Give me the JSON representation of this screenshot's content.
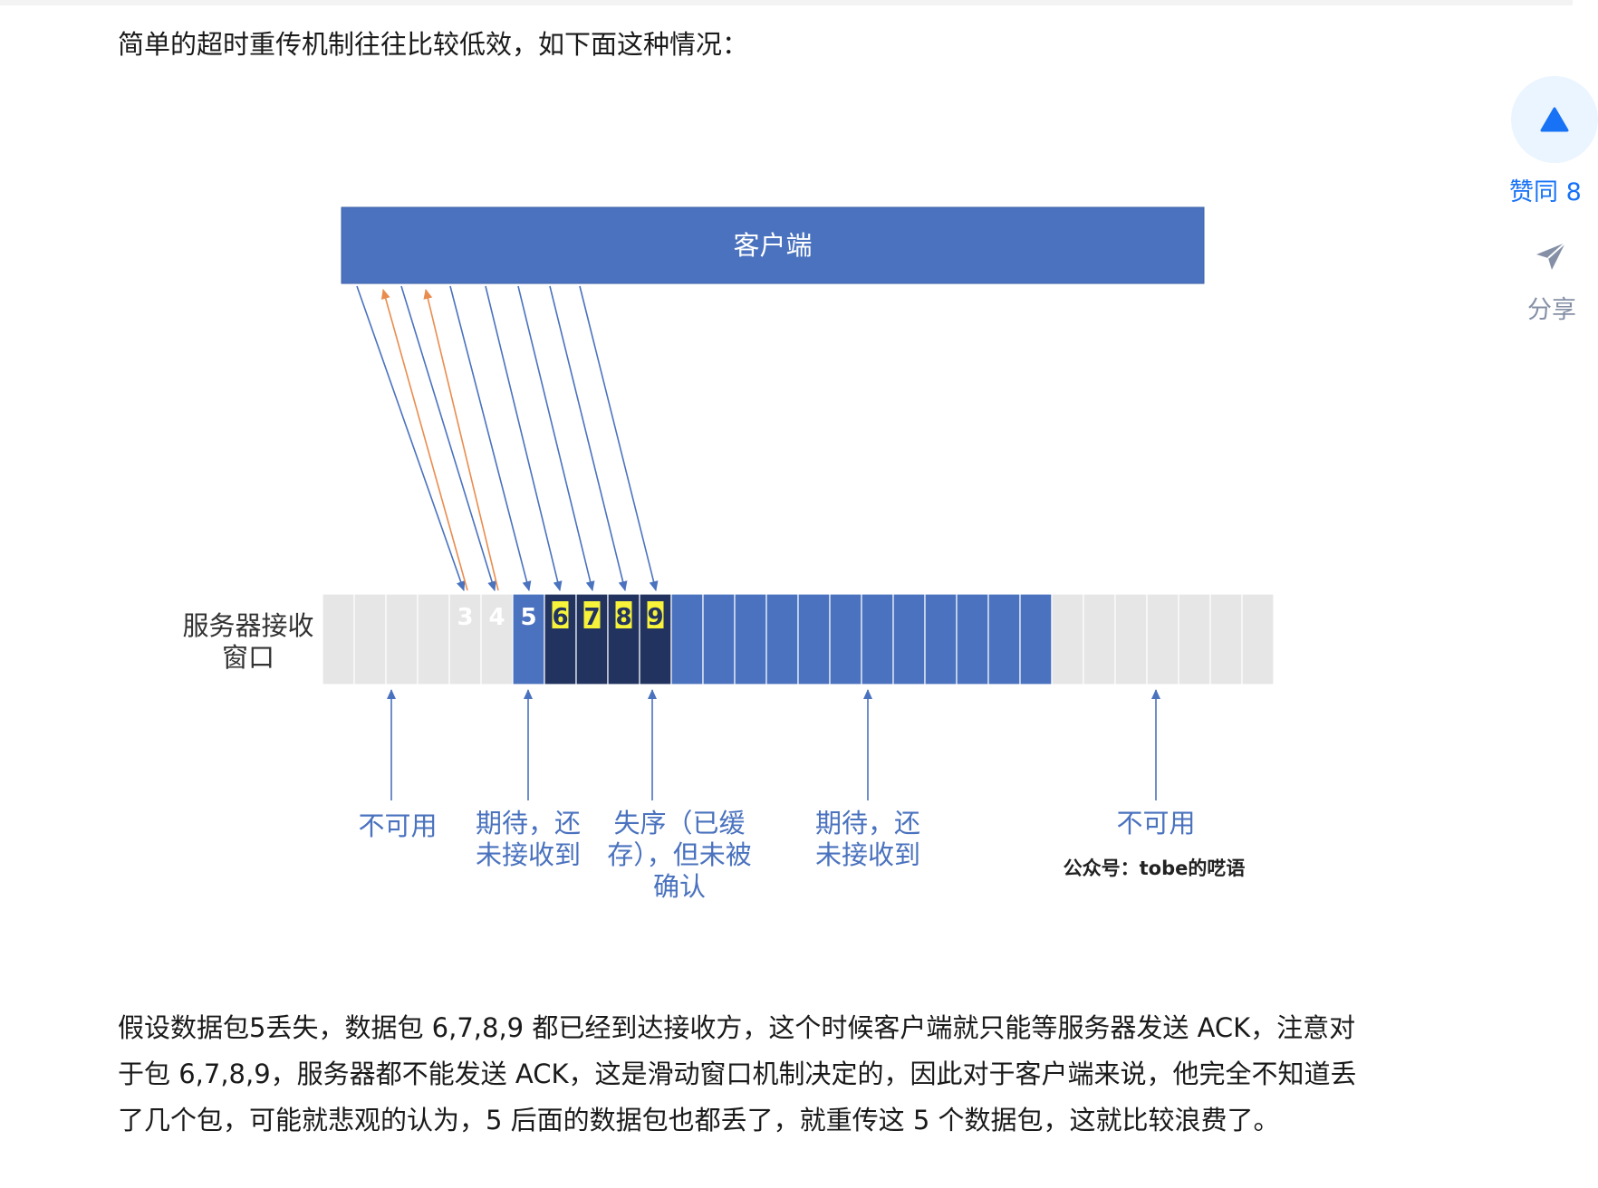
{
  "article": {
    "intro": "简单的超时重传机制往往比较低效，如下面这种情况：",
    "body": "假设数据包5丢失，数据包 6,7,8,9 都已经到达接收方，这个时候客户端就只能等服务器发送 ACK，注意对于包 6,7,8,9，服务器都不能发送 ACK，这是滑动窗口机制决定的，因此对于客户端来说，他完全不知道丢了几个包，可能就悲观的认为，5 后面的数据包也都丢了，就重传这 5 个数据包，这就比较浪费了。"
  },
  "diagram": {
    "client_label": "客户端",
    "window_label": [
      "服务器接收",
      "窗口"
    ],
    "cell_numbers": [
      "3",
      "4",
      "5",
      "6",
      "7",
      "8",
      "9"
    ],
    "annotations": [
      {
        "lines": [
          "不可用"
        ]
      },
      {
        "lines": [
          "期待，还",
          "未接收到"
        ]
      },
      {
        "lines": [
          "失序（已缓",
          "存），但未被",
          "确认"
        ]
      },
      {
        "lines": [
          "期待，还",
          "未接收到"
        ]
      },
      {
        "lines": [
          "不可用"
        ]
      }
    ],
    "watermark": "公众号：tobe的呓语",
    "colors": {
      "client": "#4a72be",
      "expected": "#4a72be",
      "received": "#223360",
      "unavailable": "#e6e6e6",
      "highlight": "#f7f33a",
      "send_arrow": "#4a72be",
      "ack_arrow": "#e98c4f"
    }
  },
  "sidebar": {
    "vote_label": "赞同 8",
    "share_label": "分享",
    "icons": [
      "vote-up-icon",
      "share-plane-icon"
    ]
  }
}
